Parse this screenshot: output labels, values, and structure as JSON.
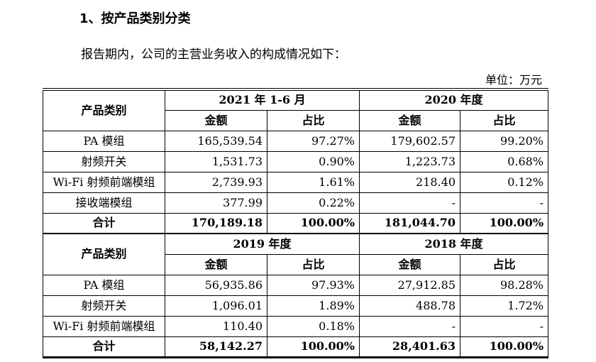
{
  "heading": "1、按产品类别分类",
  "intro": "报告期内，公司的主营业务收入的构成情况如下：",
  "unit": "单位：万元",
  "table": {
    "col_category": "产品类别",
    "col_amount": "金额",
    "col_ratio": "占比",
    "sections": [
      {
        "periods": [
          "2021 年 1-6 月",
          "2020 年度"
        ],
        "rows": [
          {
            "name": "PA 模组",
            "v": [
              "165,539.54",
              "97.27%",
              "179,602.57",
              "99.20%"
            ]
          },
          {
            "name": "射频开关",
            "v": [
              "1,531.73",
              "0.90%",
              "1,223.73",
              "0.68%"
            ]
          },
          {
            "name": "Wi-Fi 射频前端模组",
            "v": [
              "2,739.93",
              "1.61%",
              "218.40",
              "0.12%"
            ]
          },
          {
            "name": "接收端模组",
            "v": [
              "377.99",
              "0.22%",
              "-",
              "-"
            ]
          }
        ],
        "total": {
          "name": "合计",
          "v": [
            "170,189.18",
            "100.00%",
            "181,044.70",
            "100.00%"
          ]
        }
      },
      {
        "periods": [
          "2019 年度",
          "2018 年度"
        ],
        "rows": [
          {
            "name": "PA 模组",
            "v": [
              "56,935.86",
              "97.93%",
              "27,912.85",
              "98.28%"
            ]
          },
          {
            "name": "射频开关",
            "v": [
              "1,096.01",
              "1.89%",
              "488.78",
              "1.72%"
            ]
          },
          {
            "name": "Wi-Fi 射频前端模组",
            "v": [
              "110.40",
              "0.18%",
              "-",
              "-"
            ]
          }
        ],
        "total": {
          "name": "合计",
          "v": [
            "58,142.27",
            "100.00%",
            "28,401.63",
            "100.00%"
          ]
        }
      }
    ]
  }
}
